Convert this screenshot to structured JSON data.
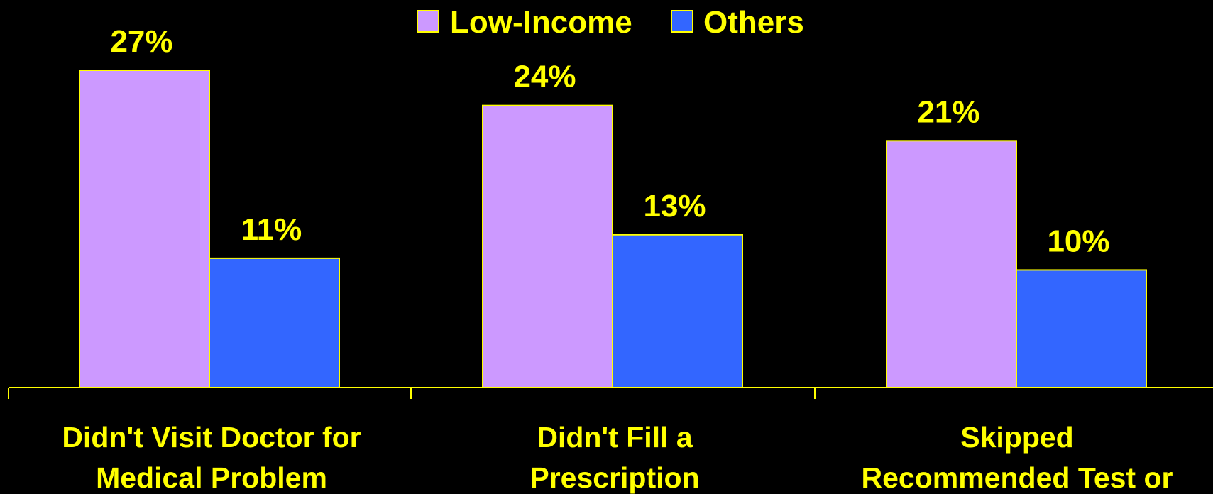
{
  "chart_data": {
    "type": "bar",
    "categories": [
      [
        "Didn't Visit Doctor for",
        "Medical Problem"
      ],
      [
        "Didn't Fill a",
        "Prescription"
      ],
      [
        "Skipped",
        "Recommended Test or"
      ]
    ],
    "series": [
      {
        "name": "Low-Income",
        "values": [
          27,
          24,
          21
        ],
        "labels": [
          "27%",
          "24%",
          "21%"
        ],
        "color": "#CC99FF"
      },
      {
        "name": "Others",
        "values": [
          11,
          13,
          10
        ],
        "labels": [
          "11%",
          "13%",
          "10%"
        ],
        "color": "#3366FF"
      }
    ],
    "ylim": [
      0,
      27
    ],
    "legend_position": "top-center",
    "grid": false,
    "colors": {
      "background": "#000000",
      "text": "#FFFF00",
      "outline": "#FFFF00",
      "axis": "#FFFF00"
    }
  }
}
